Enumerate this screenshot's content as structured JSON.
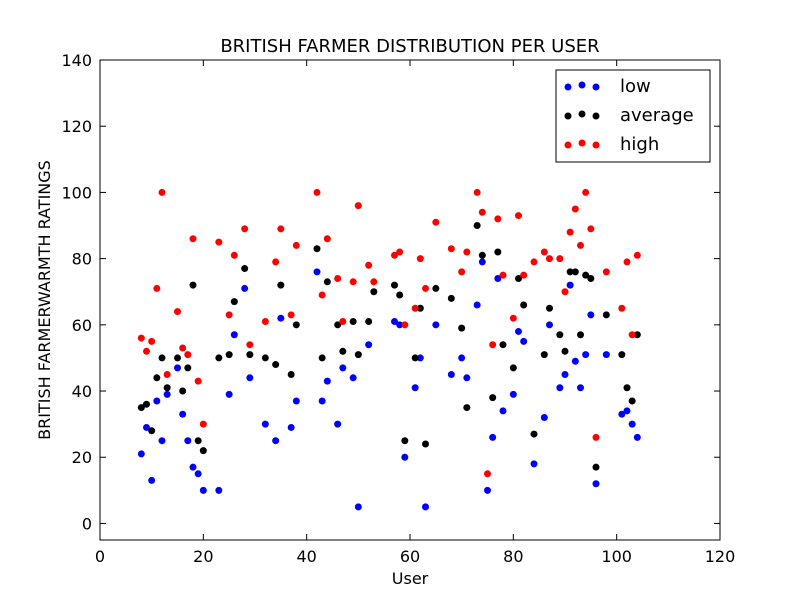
{
  "chart_data": {
    "type": "scatter",
    "title": "BRITISH FARMER DISTRIBUTION PER USER",
    "xlabel": "User",
    "ylabel": "BRITISH FARMERWARMTH RATINGS",
    "xlim": [
      0,
      120
    ],
    "ylim": [
      -5,
      140
    ],
    "xticks": [
      0,
      20,
      40,
      60,
      80,
      100,
      120
    ],
    "yticks": [
      0,
      20,
      40,
      60,
      80,
      100,
      120,
      140
    ],
    "grid": false,
    "legend_position": "top-right",
    "series": [
      {
        "name": "low",
        "color": "#0000ff",
        "points": [
          [
            8,
            21
          ],
          [
            9,
            29
          ],
          [
            10,
            13
          ],
          [
            11,
            37
          ],
          [
            12,
            25
          ],
          [
            13,
            39
          ],
          [
            15,
            47
          ],
          [
            16,
            33
          ],
          [
            17,
            25
          ],
          [
            18,
            17
          ],
          [
            19,
            15
          ],
          [
            20,
            10
          ],
          [
            23,
            10
          ],
          [
            25,
            39
          ],
          [
            26,
            57
          ],
          [
            28,
            71
          ],
          [
            29,
            44
          ],
          [
            32,
            30
          ],
          [
            34,
            25
          ],
          [
            35,
            62
          ],
          [
            37,
            29
          ],
          [
            38,
            37
          ],
          [
            42,
            76
          ],
          [
            43,
            37
          ],
          [
            44,
            43
          ],
          [
            46,
            30
          ],
          [
            47,
            47
          ],
          [
            49,
            44
          ],
          [
            50,
            5
          ],
          [
            52,
            54
          ],
          [
            57,
            61
          ],
          [
            58,
            60
          ],
          [
            59,
            20
          ],
          [
            61,
            41
          ],
          [
            62,
            50
          ],
          [
            63,
            5
          ],
          [
            65,
            60
          ],
          [
            68,
            45
          ],
          [
            70,
            50
          ],
          [
            71,
            44
          ],
          [
            73,
            66
          ],
          [
            74,
            79
          ],
          [
            75,
            10
          ],
          [
            76,
            26
          ],
          [
            77,
            74
          ],
          [
            78,
            34
          ],
          [
            80,
            39
          ],
          [
            81,
            58
          ],
          [
            82,
            55
          ],
          [
            84,
            18
          ],
          [
            86,
            32
          ],
          [
            87,
            60
          ],
          [
            89,
            41
          ],
          [
            90,
            45
          ],
          [
            91,
            72
          ],
          [
            92,
            49
          ],
          [
            93,
            41
          ],
          [
            94,
            51
          ],
          [
            95,
            63
          ],
          [
            96,
            12
          ],
          [
            98,
            51
          ],
          [
            101,
            33
          ],
          [
            102,
            34
          ],
          [
            103,
            30
          ],
          [
            104,
            26
          ]
        ]
      },
      {
        "name": "average",
        "color": "#000000",
        "points": [
          [
            8,
            35
          ],
          [
            9,
            36
          ],
          [
            10,
            28
          ],
          [
            11,
            44
          ],
          [
            12,
            50
          ],
          [
            13,
            41
          ],
          [
            15,
            50
          ],
          [
            16,
            40
          ],
          [
            17,
            47
          ],
          [
            18,
            72
          ],
          [
            19,
            25
          ],
          [
            20,
            22
          ],
          [
            23,
            50
          ],
          [
            25,
            51
          ],
          [
            26,
            67
          ],
          [
            28,
            77
          ],
          [
            29,
            51
          ],
          [
            32,
            50
          ],
          [
            34,
            48
          ],
          [
            35,
            72
          ],
          [
            37,
            45
          ],
          [
            38,
            60
          ],
          [
            42,
            83
          ],
          [
            43,
            50
          ],
          [
            44,
            73
          ],
          [
            46,
            60
          ],
          [
            47,
            52
          ],
          [
            49,
            61
          ],
          [
            50,
            51
          ],
          [
            52,
            61
          ],
          [
            53,
            70
          ],
          [
            57,
            72
          ],
          [
            58,
            69
          ],
          [
            59,
            25
          ],
          [
            61,
            50
          ],
          [
            62,
            65
          ],
          [
            63,
            24
          ],
          [
            65,
            71
          ],
          [
            68,
            68
          ],
          [
            70,
            59
          ],
          [
            71,
            35
          ],
          [
            73,
            90
          ],
          [
            74,
            81
          ],
          [
            76,
            38
          ],
          [
            77,
            82
          ],
          [
            78,
            54
          ],
          [
            80,
            47
          ],
          [
            81,
            74
          ],
          [
            82,
            66
          ],
          [
            84,
            27
          ],
          [
            86,
            51
          ],
          [
            87,
            65
          ],
          [
            89,
            57
          ],
          [
            90,
            52
          ],
          [
            91,
            76
          ],
          [
            92,
            76
          ],
          [
            93,
            57
          ],
          [
            94,
            75
          ],
          [
            95,
            74
          ],
          [
            96,
            17
          ],
          [
            98,
            63
          ],
          [
            101,
            51
          ],
          [
            102,
            41
          ],
          [
            103,
            37
          ],
          [
            104,
            57
          ]
        ]
      },
      {
        "name": "high",
        "color": "#ff0000",
        "points": [
          [
            8,
            56
          ],
          [
            9,
            52
          ],
          [
            10,
            55
          ],
          [
            11,
            71
          ],
          [
            12,
            100
          ],
          [
            13,
            45
          ],
          [
            15,
            64
          ],
          [
            16,
            53
          ],
          [
            17,
            51
          ],
          [
            18,
            86
          ],
          [
            19,
            43
          ],
          [
            20,
            30
          ],
          [
            23,
            85
          ],
          [
            25,
            63
          ],
          [
            26,
            81
          ],
          [
            28,
            89
          ],
          [
            29,
            54
          ],
          [
            32,
            61
          ],
          [
            34,
            79
          ],
          [
            35,
            89
          ],
          [
            37,
            63
          ],
          [
            38,
            84
          ],
          [
            42,
            100
          ],
          [
            43,
            69
          ],
          [
            44,
            86
          ],
          [
            46,
            74
          ],
          [
            47,
            61
          ],
          [
            49,
            73
          ],
          [
            50,
            96
          ],
          [
            52,
            78
          ],
          [
            53,
            73
          ],
          [
            57,
            81
          ],
          [
            58,
            82
          ],
          [
            59,
            60
          ],
          [
            61,
            65
          ],
          [
            62,
            80
          ],
          [
            63,
            71
          ],
          [
            65,
            91
          ],
          [
            68,
            83
          ],
          [
            70,
            76
          ],
          [
            71,
            82
          ],
          [
            73,
            100
          ],
          [
            74,
            94
          ],
          [
            75,
            15
          ],
          [
            76,
            54
          ],
          [
            77,
            92
          ],
          [
            78,
            75
          ],
          [
            80,
            62
          ],
          [
            81,
            93
          ],
          [
            82,
            75
          ],
          [
            84,
            79
          ],
          [
            86,
            82
          ],
          [
            87,
            80
          ],
          [
            89,
            80
          ],
          [
            90,
            70
          ],
          [
            91,
            88
          ],
          [
            92,
            95
          ],
          [
            93,
            84
          ],
          [
            94,
            100
          ],
          [
            95,
            89
          ],
          [
            96,
            26
          ],
          [
            98,
            76
          ],
          [
            101,
            65
          ],
          [
            102,
            79
          ],
          [
            103,
            57
          ],
          [
            104,
            81
          ]
        ]
      }
    ]
  }
}
